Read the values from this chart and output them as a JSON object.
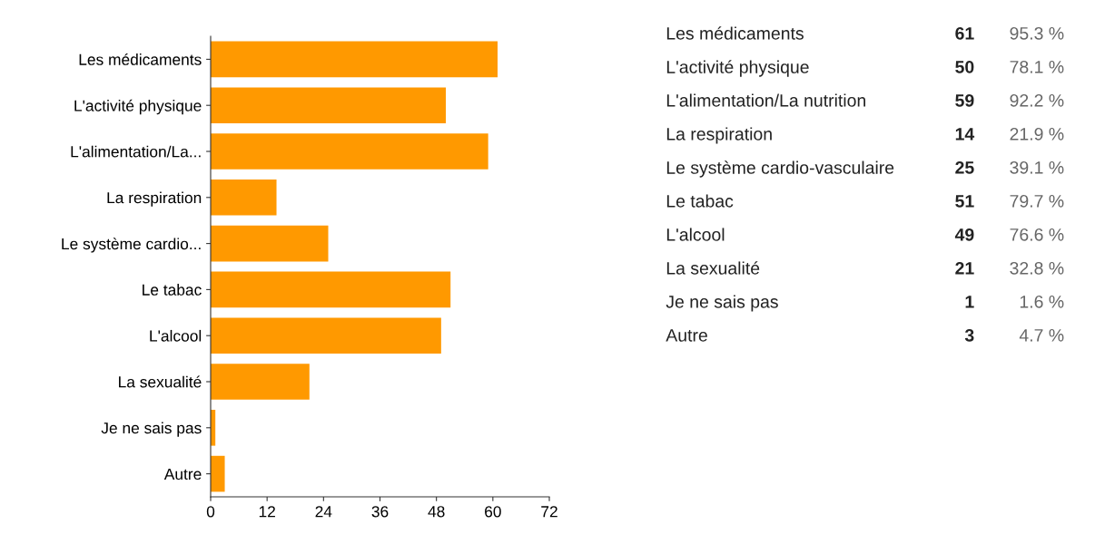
{
  "chart_data": [
    {
      "type": "bar",
      "orientation": "horizontal",
      "categories": [
        "Les médicaments",
        "L'activité physique",
        "L'alimentation/La...",
        "La respiration",
        "Le système cardio...",
        "Le tabac",
        "L'alcool",
        "La sexualité",
        "Je ne sais pas",
        "Autre"
      ],
      "values": [
        61,
        50,
        59,
        14,
        25,
        51,
        49,
        21,
        1,
        3
      ],
      "color": "#ff9900",
      "xlim": [
        0,
        72
      ],
      "xticks": [
        0,
        12,
        24,
        36,
        48,
        60,
        72
      ],
      "grid": false,
      "legend": false
    },
    {
      "type": "other",
      "annotations": [
        "Les médicaments",
        "61",
        "95.3 %",
        "L'activité physique",
        "50",
        "78.1 %",
        "L'alimentation/La nutrition",
        "59",
        "92.2 %",
        "La respiration",
        "14",
        "21.9 %",
        "Le système cardio-vasculaire",
        "25",
        "39.1 %",
        "Le tabac",
        "51",
        "79.7 %",
        "L'alcool",
        "49",
        "76.6 %",
        "La sexualité",
        "21",
        "32.8 %",
        "Je ne sais pas",
        "1",
        "1.6 %",
        "Autre",
        "3",
        "4.7 %"
      ]
    }
  ]
}
